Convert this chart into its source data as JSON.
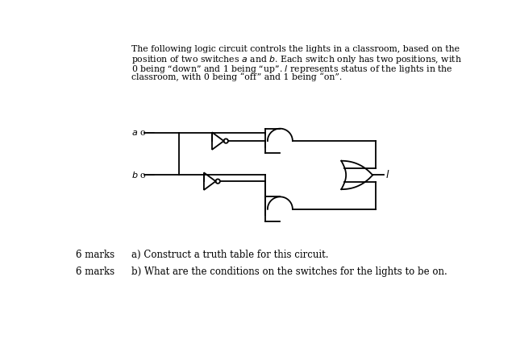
{
  "background_color": "#ffffff",
  "line_color": "#000000",
  "text_color": "#000000",
  "title_lines": [
    "The following logic circuit controls the lights in a classroom, based on the",
    "position of two switches $a$ and $b$. Each switch only has two positions, with",
    "0 being “down” and 1 being “up”. $l$ represents status of the lights in the",
    "classroom, with 0 being “off” and 1 being “on”."
  ],
  "marks_a": "6 marks",
  "marks_b": "6 marks",
  "question_a": "a) Construct a truth table for this circuit.",
  "question_b": "b) What are the conditions on the switches for the lights to be on."
}
